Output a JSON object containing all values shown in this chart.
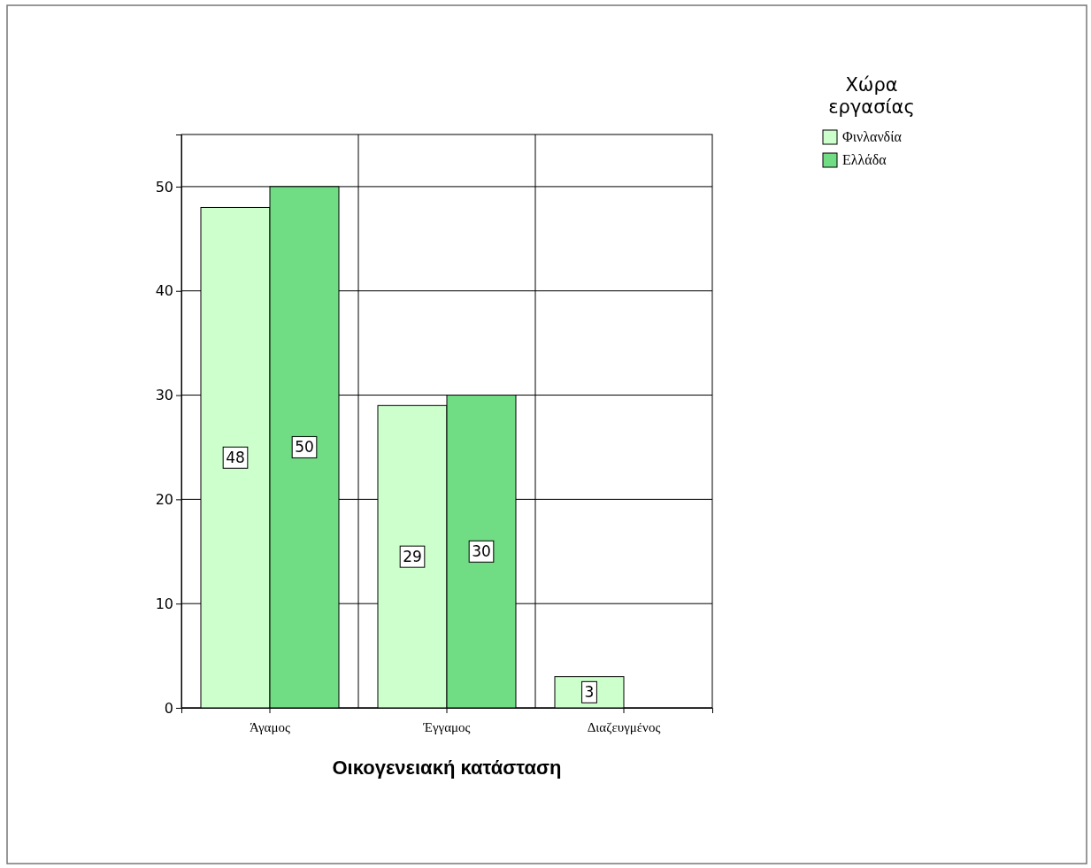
{
  "chart_data": {
    "type": "bar",
    "xlabel": "Οικογενειακή κατάσταση",
    "legend_title": "Χώρα εργασίας",
    "categories": [
      "Άγαμος",
      "Έγγαμος",
      "Διαζευγμένος"
    ],
    "series": [
      {
        "name": "Φινλανδία",
        "color": "#ccffcc",
        "values": [
          48,
          29,
          3
        ]
      },
      {
        "name": "Ελλάδα",
        "color": "#70dc84",
        "values": [
          50,
          30,
          null
        ]
      }
    ],
    "ylim": [
      0,
      55
    ],
    "yticks": [
      0,
      10,
      20,
      30,
      40,
      50
    ],
    "grid": true,
    "legend": "top right",
    "data_labels": true
  }
}
